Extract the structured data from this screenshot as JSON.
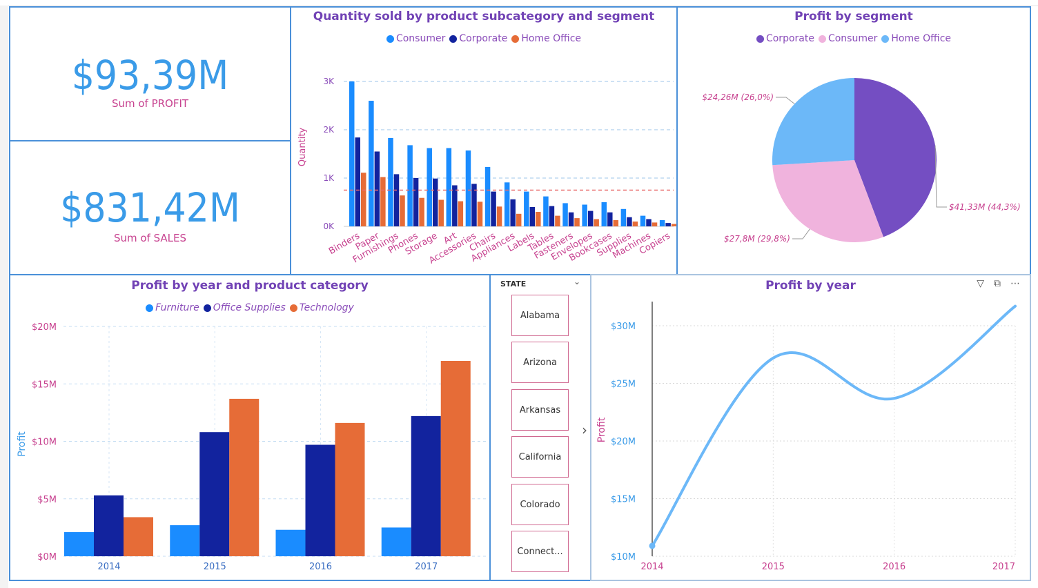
{
  "kpis": [
    {
      "value": "$93,39M",
      "label": "Sum of PROFIT"
    },
    {
      "value": "$831,42M",
      "label": "Sum of SALES"
    }
  ],
  "quantity_chart": {
    "title": "Quantity sold by product subcategory and segment",
    "ylabel": "Quantity",
    "legend": [
      {
        "name": "Consumer",
        "color": "#1a8cff"
      },
      {
        "name": "Corporate",
        "color": "#12239e"
      },
      {
        "name": "Home Office",
        "color": "#e66c37"
      }
    ],
    "y_ticks": [
      "0K",
      "1K",
      "2K",
      "3K"
    ]
  },
  "pie_chart": {
    "title": "Profit by segment",
    "legend": [
      {
        "name": "Corporate",
        "color": "#744ec2"
      },
      {
        "name": "Consumer",
        "color": "#f0b3dd"
      },
      {
        "name": "Home Office",
        "color": "#6cb8f8"
      }
    ],
    "labels": [
      "$41,33M (44,3%)",
      "$27,8M (29,8%)",
      "$24,26M (26,0%)"
    ]
  },
  "category_chart": {
    "title": "Profit by year and product category",
    "ylabel": "Profit",
    "legend": [
      {
        "name": "Furniture",
        "color": "#1a8cff"
      },
      {
        "name": "Office Supplies",
        "color": "#12239e"
      },
      {
        "name": "Technology",
        "color": "#e66c37"
      }
    ],
    "y_ticks": [
      "$0M",
      "$5M",
      "$10M",
      "$15M",
      "$20M"
    ]
  },
  "slicer": {
    "header": "STATE",
    "chevron": "chevron-down-icon",
    "items": [
      "Alabama",
      "Arizona",
      "Arkansas",
      "California",
      "Colorado",
      "Connect..."
    ],
    "arrow": "chevron-right-icon"
  },
  "line_chart": {
    "title": "Profit by year",
    "ylabel": "Profit",
    "y_ticks": [
      "$10M",
      "$15M",
      "$20M",
      "$25M",
      "$30M"
    ],
    "icons": [
      "filter-icon",
      "focus-mode-icon",
      "more-options-icon"
    ]
  },
  "chart_data": [
    {
      "type": "bar",
      "title": "Quantity sold by product subcategory and segment",
      "xlabel": "",
      "ylabel": "Quantity",
      "ylim": [
        0,
        3300
      ],
      "reference_line": 750,
      "categories": [
        "Binders",
        "Paper",
        "Furnishings",
        "Phones",
        "Storage",
        "Art",
        "Accessories",
        "Chairs",
        "Appliances",
        "Labels",
        "Tables",
        "Fasteners",
        "Envelopes",
        "Bookcases",
        "Supplies",
        "Machines",
        "Copiers"
      ],
      "series": [
        {
          "name": "Consumer",
          "values": [
            3000,
            2600,
            1830,
            1680,
            1620,
            1620,
            1570,
            1230,
            910,
            720,
            620,
            480,
            450,
            500,
            360,
            220,
            130
          ]
        },
        {
          "name": "Corporate",
          "values": [
            1840,
            1550,
            1080,
            1000,
            990,
            850,
            880,
            720,
            560,
            400,
            420,
            290,
            320,
            290,
            190,
            150,
            70
          ]
        },
        {
          "name": "Home Office",
          "values": [
            1110,
            1020,
            640,
            590,
            550,
            520,
            510,
            410,
            260,
            300,
            220,
            170,
            150,
            130,
            100,
            80,
            50
          ]
        }
      ]
    },
    {
      "type": "pie",
      "title": "Profit by segment",
      "slices": [
        {
          "label": "Corporate",
          "value": 41.33,
          "percent": 44.3
        },
        {
          "label": "Consumer",
          "value": 27.8,
          "percent": 29.8
        },
        {
          "label": "Home Office",
          "value": 24.26,
          "percent": 26.0
        }
      ]
    },
    {
      "type": "bar",
      "title": "Profit by year and product category",
      "xlabel": "",
      "ylabel": "Profit",
      "ylim": [
        0,
        20
      ],
      "categories": [
        "2014",
        "2015",
        "2016",
        "2017"
      ],
      "series": [
        {
          "name": "Furniture",
          "values": [
            2.1,
            2.7,
            2.3,
            2.5
          ]
        },
        {
          "name": "Office Supplies",
          "values": [
            5.3,
            10.8,
            9.7,
            12.2
          ]
        },
        {
          "name": "Technology",
          "values": [
            3.4,
            13.7,
            11.6,
            17.0
          ]
        }
      ]
    },
    {
      "type": "line",
      "title": "Profit by year",
      "xlabel": "",
      "ylabel": "Profit",
      "ylim": [
        10,
        32
      ],
      "x": [
        "2014",
        "2015",
        "2016",
        "2017"
      ],
      "series": [
        {
          "name": "Profit",
          "values": [
            10.9,
            27.2,
            23.7,
            31.7
          ]
        }
      ]
    }
  ]
}
